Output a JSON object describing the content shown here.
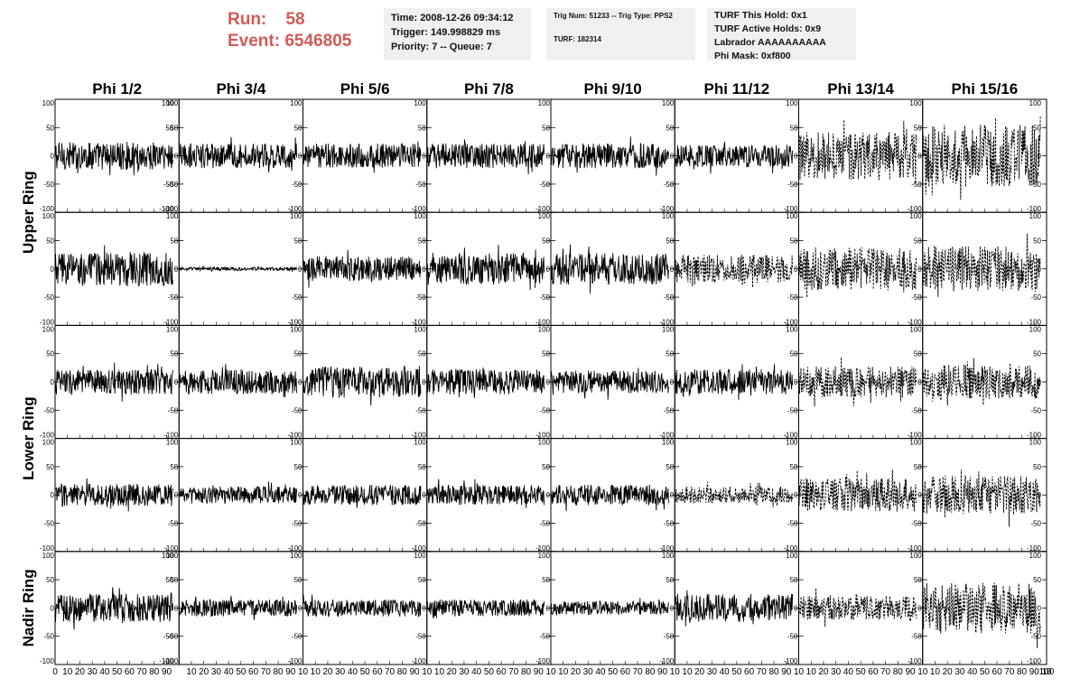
{
  "header": {
    "run_label": "Run:",
    "run_value": "58",
    "event_label": "Event:",
    "event_value": "6546805",
    "time": "Time: 2008-12-26 09:34:12",
    "trigger": "Trigger: 149.998829 ms",
    "priority": "Priority: 7 -- Queue: 7",
    "trig_num": "Trig Num: 51233 -- Trig Type: PPS2",
    "turf": "TURF: 182314",
    "turf_this_hold": "TURF This Hold: 0x1",
    "turf_active_holds": "TURF Active Holds: 0x9",
    "labrador": "Labrador AAAAAAAAAA",
    "phi_mask": "Phi Mask: 0xf800"
  },
  "colors": {
    "run_text": "#d05a55",
    "info_bg": "#f0f0f0",
    "trace": "#000000"
  },
  "chart_data": {
    "type": "line",
    "columns": [
      "Phi 1/2",
      "Phi 3/4",
      "Phi 5/6",
      "Phi 7/8",
      "Phi 9/10",
      "Phi 11/12",
      "Phi 13/14",
      "Phi 15/16"
    ],
    "row_groups": [
      {
        "label": "Upper Ring",
        "panels": 2
      },
      {
        "label": "Lower Ring",
        "panels": 2
      },
      {
        "label": "Nadir Ring",
        "panels": 1
      }
    ],
    "xlim": [
      0,
      100
    ],
    "ylim": [
      -100,
      100
    ],
    "yticks": [
      -100,
      -50,
      0,
      50,
      100
    ],
    "xticks": [
      0,
      10,
      20,
      30,
      40,
      50,
      60,
      70,
      80,
      90,
      100
    ],
    "x_tick_labels": [
      "0",
      "10",
      "20",
      "30",
      "40",
      "50",
      "60",
      "70",
      "80",
      "90",
      "100"
    ],
    "x_tick_labels_wrapped": [
      "10",
      "20",
      "30",
      "40",
      "50",
      "60",
      "70",
      "80",
      "90",
      "10"
    ],
    "y_tick_labels": [
      "-100",
      "-50",
      "0",
      "50",
      "100"
    ],
    "trace_x_range": [
      0,
      95
    ],
    "amplitude": [
      [
        25,
        22,
        22,
        22,
        22,
        20,
        42,
        55
      ],
      [
        30,
        3,
        22,
        28,
        28,
        25,
        38,
        40
      ],
      [
        22,
        22,
        28,
        22,
        20,
        22,
        28,
        30
      ],
      [
        20,
        15,
        18,
        18,
        18,
        15,
        30,
        35
      ],
      [
        25,
        15,
        15,
        15,
        12,
        25,
        22,
        45
      ]
    ],
    "dashed_channels": [
      [
        false,
        false,
        false,
        false,
        false,
        false,
        true,
        true
      ],
      [
        false,
        false,
        false,
        false,
        false,
        true,
        true,
        true
      ],
      [
        false,
        false,
        false,
        false,
        false,
        false,
        true,
        true
      ],
      [
        false,
        false,
        false,
        false,
        false,
        true,
        true,
        true
      ],
      [
        false,
        false,
        false,
        false,
        false,
        false,
        true,
        true
      ]
    ]
  }
}
